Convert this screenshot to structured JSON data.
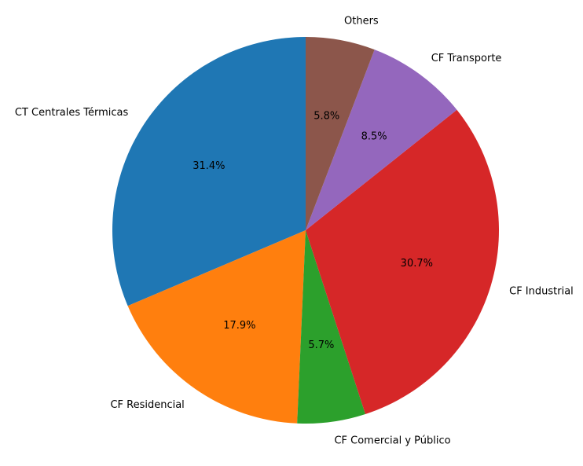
{
  "chart_data": {
    "type": "pie",
    "title": "",
    "start_angle": 90,
    "direction": "counterclockwise",
    "slices": [
      {
        "label": "CT Centrales Térmicas",
        "value": 31.4,
        "pct_label": "31.4%",
        "color": "#1f77b4"
      },
      {
        "label": "CF Residencial",
        "value": 17.9,
        "pct_label": "17.9%",
        "color": "#ff7f0e"
      },
      {
        "label": "CF Comercial y Público",
        "value": 5.7,
        "pct_label": "5.7%",
        "color": "#2ca02c"
      },
      {
        "label": "CF Industrial",
        "value": 30.7,
        "pct_label": "30.7%",
        "color": "#d62728"
      },
      {
        "label": "CF Transporte",
        "value": 8.5,
        "pct_label": "8.5%",
        "color": "#9467bd"
      },
      {
        "label": "Others",
        "value": 5.8,
        "pct_label": "5.8%",
        "color": "#8c564b"
      }
    ]
  }
}
